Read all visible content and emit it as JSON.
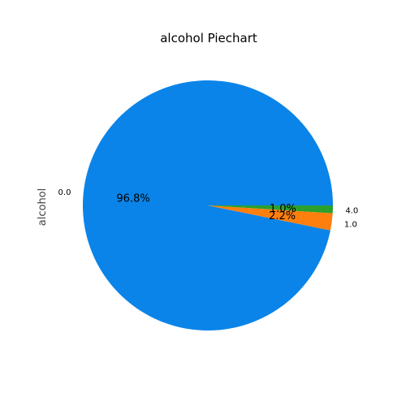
{
  "chart_data": {
    "type": "pie",
    "title": "alcohol Piechart",
    "ylabel": "alcohol",
    "slices": [
      {
        "label": "0.0",
        "value": 96.8,
        "pct_label": "96.8%",
        "color": "#0a84e8"
      },
      {
        "label": "1.0",
        "value": 2.2,
        "pct_label": "2.2%",
        "color": "#ff7f0e"
      },
      {
        "label": "4.0",
        "value": 1.0,
        "pct_label": "1.0%",
        "color": "#2ca02c"
      }
    ]
  }
}
